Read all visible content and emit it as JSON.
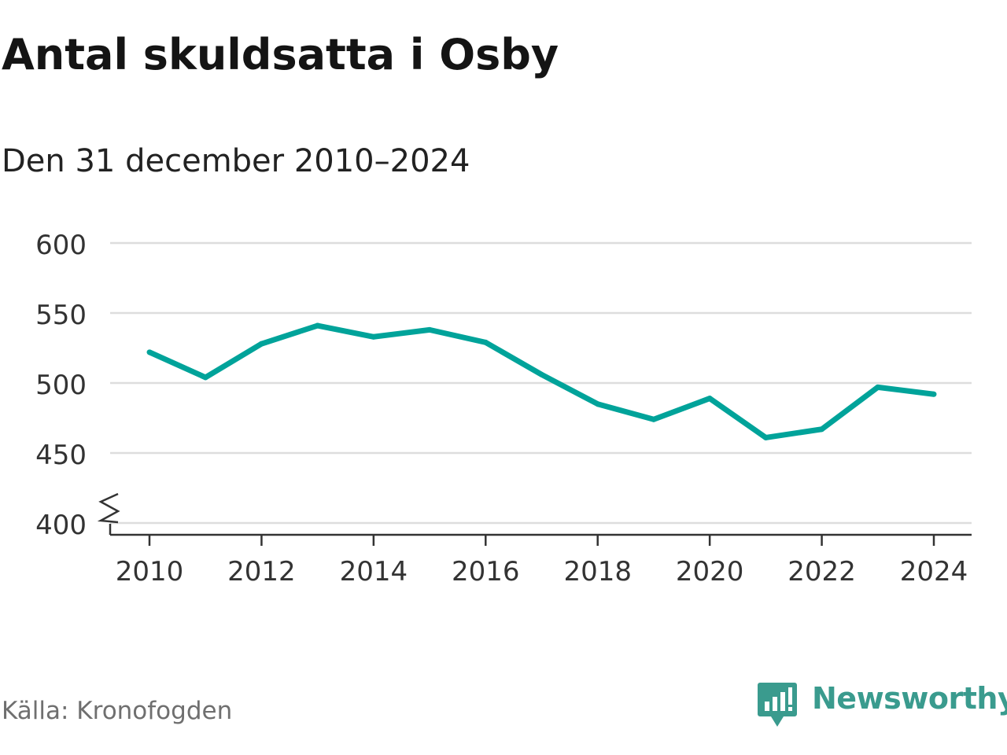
{
  "title": "Antal skuldsatta i Osby",
  "subtitle": "Den 31 december 2010–2024",
  "source": "Källa: Kronofogden",
  "brand": "Newsworthy",
  "colors": {
    "line": "#00a39a",
    "grid": "#dddddd",
    "axis": "#333333",
    "text": "#333333",
    "brand": "#3a9b8e"
  },
  "chart_data": {
    "type": "line",
    "title": "Antal skuldsatta i Osby",
    "subtitle": "Den 31 december 2010–2024",
    "xlabel": "",
    "ylabel": "",
    "x": [
      2010,
      2011,
      2012,
      2013,
      2014,
      2015,
      2016,
      2017,
      2018,
      2019,
      2020,
      2021,
      2022,
      2023,
      2024
    ],
    "series": [
      {
        "values": [
          522,
          504,
          528,
          541,
          533,
          538,
          529,
          506,
          485,
          474,
          489,
          461,
          467,
          497,
          492
        ]
      }
    ],
    "ylim": [
      400,
      600
    ],
    "yticks": [
      "400",
      "450",
      "500",
      "550",
      "600"
    ],
    "xticks": [
      "2010",
      "2012",
      "2014",
      "2016",
      "2018",
      "2020",
      "2022",
      "2024"
    ],
    "axis_break": true,
    "grid": true,
    "legend": "none"
  }
}
